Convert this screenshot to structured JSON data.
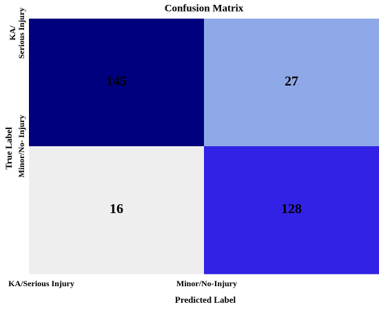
{
  "chart_data": {
    "type": "heatmap",
    "title": "Confusion Matrix",
    "x_label": "Predicted Label",
    "y_label": "True Label",
    "x_categories": [
      "KA/Serious Injury",
      "Minor/No-Injury"
    ],
    "y_categories": [
      [
        "KA/",
        "Serious Injury"
      ],
      [
        "Minor/No- Injury"
      ]
    ],
    "values": [
      [
        145,
        27
      ],
      [
        16,
        128
      ]
    ],
    "cell_colors": [
      [
        "#00007f",
        "#8fa8e8"
      ],
      [
        "#eeeeee",
        "#3222e6"
      ]
    ]
  }
}
